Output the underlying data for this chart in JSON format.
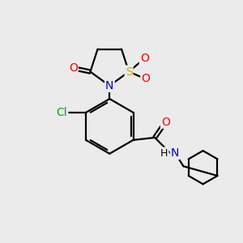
{
  "bg_color": "#ebebeb",
  "bond_color": "#000000",
  "atom_colors": {
    "O": "#ff0000",
    "N": "#0000cc",
    "S": "#ccaa00",
    "Cl": "#00aa00",
    "C": "#000000",
    "H": "#000000"
  },
  "line_width": 1.6,
  "font_size": 10,
  "fig_w": 3.0,
  "fig_h": 3.0,
  "dpi": 100
}
